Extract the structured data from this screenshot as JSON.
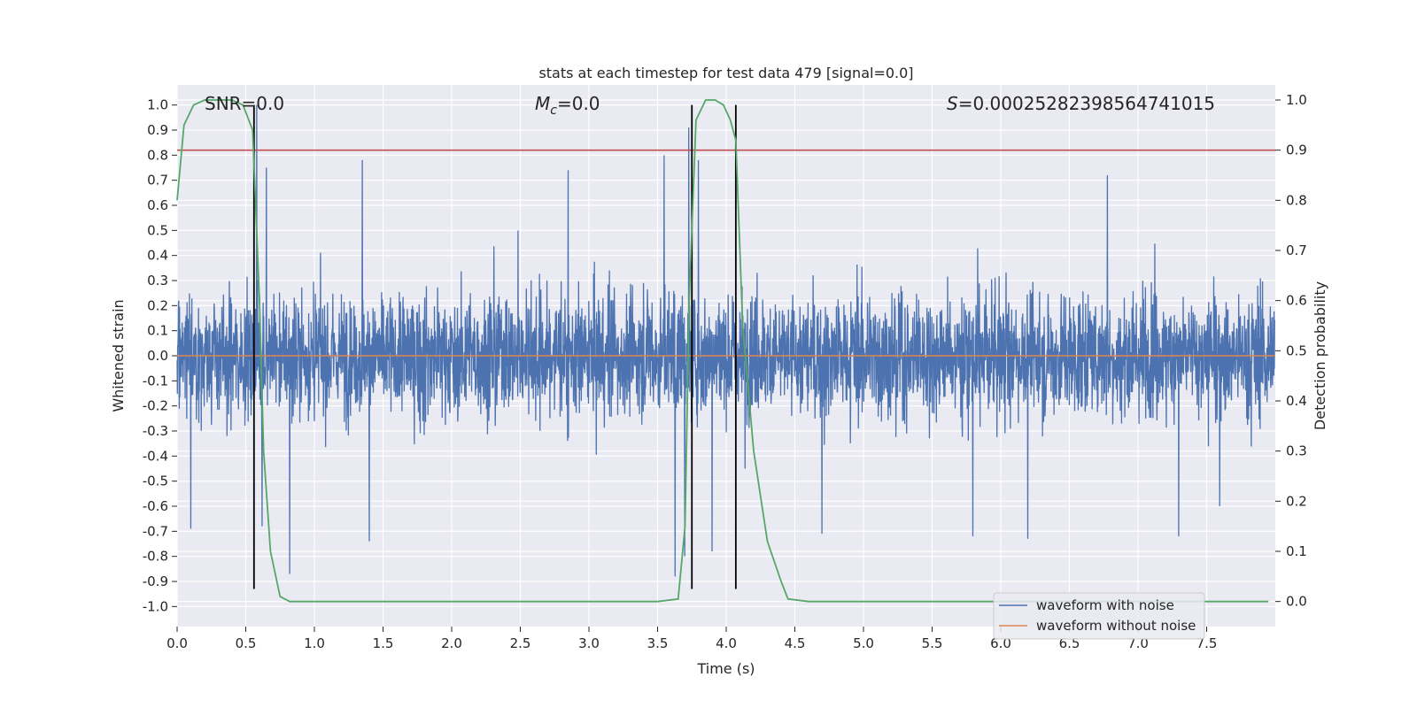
{
  "chart_data": {
    "type": "line",
    "title": "stats at each timestep for test data 479 [signal=0.0]",
    "xlabel": "Time (s)",
    "ylabel": "Whitened strain",
    "y2label": "Detection probability",
    "xlim": [
      0.0,
      8.0
    ],
    "ylim": [
      -1.08,
      1.08
    ],
    "y2lim": [
      -0.05,
      1.03
    ],
    "x_ticks": [
      "0.0",
      "0.5",
      "1.0",
      "1.5",
      "2.0",
      "2.5",
      "3.0",
      "3.5",
      "4.0",
      "4.5",
      "5.0",
      "5.5",
      "6.0",
      "6.5",
      "7.0",
      "7.5"
    ],
    "y_ticks": [
      "1.0",
      "0.9",
      "0.8",
      "0.7",
      "0.6",
      "0.5",
      "0.4",
      "0.3",
      "0.2",
      "0.1",
      "0.0",
      "-0.1",
      "-0.2",
      "-0.3",
      "-0.4",
      "-0.5",
      "-0.6",
      "-0.7",
      "-0.8",
      "-0.9",
      "-1.0"
    ],
    "y2_ticks": [
      "1.0",
      "0.9",
      "0.8",
      "0.7",
      "0.6",
      "0.5",
      "0.4",
      "0.3",
      "0.2",
      "0.1",
      "0.0"
    ],
    "annotations": {
      "snr": "SNR=0.0",
      "mc_symbol": "M",
      "mc_sub": "c",
      "mc_value": "=0.0",
      "s_symbol": "S",
      "s_value": "=0.00025282398564741015"
    },
    "threshold": {
      "axis": "y2",
      "value": 0.9,
      "color": "#c44e52"
    },
    "vertical_markers": [
      0.56,
      3.75,
      4.07
    ],
    "noisy_waveform": {
      "name": "waveform with noise",
      "color": "#4c72b0",
      "samples": 4096,
      "approx_amplitude": 0.3,
      "peaks": [
        {
          "x": 0.58,
          "y": 1.0
        },
        {
          "x": 0.65,
          "y": 0.75
        },
        {
          "x": 0.62,
          "y": -0.68
        },
        {
          "x": 0.82,
          "y": -0.87
        },
        {
          "x": 0.1,
          "y": -0.69
        },
        {
          "x": 3.63,
          "y": -0.88
        },
        {
          "x": 3.73,
          "y": 0.91
        },
        {
          "x": 3.7,
          "y": -0.8
        },
        {
          "x": 3.9,
          "y": -0.78
        },
        {
          "x": 3.8,
          "y": 0.78
        },
        {
          "x": 3.55,
          "y": 0.8
        },
        {
          "x": 1.35,
          "y": 0.78
        },
        {
          "x": 2.85,
          "y": 0.74
        },
        {
          "x": 6.78,
          "y": 0.72
        },
        {
          "x": 6.2,
          "y": -0.73
        },
        {
          "x": 5.8,
          "y": -0.72
        },
        {
          "x": 4.7,
          "y": -0.71
        },
        {
          "x": 7.3,
          "y": -0.72
        },
        {
          "x": 7.6,
          "y": -0.6
        },
        {
          "x": 1.4,
          "y": -0.74
        }
      ]
    },
    "clean_waveform": {
      "name": "waveform without noise",
      "color": "#dd8452",
      "value": 0.0
    },
    "detection_probability": {
      "name": "detection probability",
      "color": "#55a868",
      "x": [
        0.0,
        0.05,
        0.12,
        0.2,
        0.3,
        0.4,
        0.48,
        0.55,
        0.6,
        0.63,
        0.68,
        0.75,
        0.82,
        1.0,
        2.0,
        3.0,
        3.5,
        3.65,
        3.7,
        3.73,
        3.78,
        3.85,
        3.92,
        3.98,
        4.03,
        4.07,
        4.12,
        4.2,
        4.3,
        4.4,
        4.45,
        4.6,
        5.0,
        6.0,
        7.0,
        7.95
      ],
      "values": [
        0.8,
        0.95,
        0.99,
        1.0,
        1.0,
        1.0,
        0.99,
        0.94,
        0.6,
        0.3,
        0.1,
        0.01,
        0.0,
        0.0,
        0.0,
        0.0,
        0.0,
        0.005,
        0.15,
        0.6,
        0.96,
        1.0,
        1.0,
        0.99,
        0.96,
        0.92,
        0.55,
        0.3,
        0.12,
        0.04,
        0.005,
        0.0,
        0.0,
        0.0,
        0.0,
        0.0
      ]
    },
    "legend": {
      "position": "lower-right",
      "entries": [
        {
          "label": "waveform with noise",
          "color": "#4c72b0"
        },
        {
          "label": "waveform without noise",
          "color": "#dd8452"
        }
      ]
    },
    "grid": true
  }
}
